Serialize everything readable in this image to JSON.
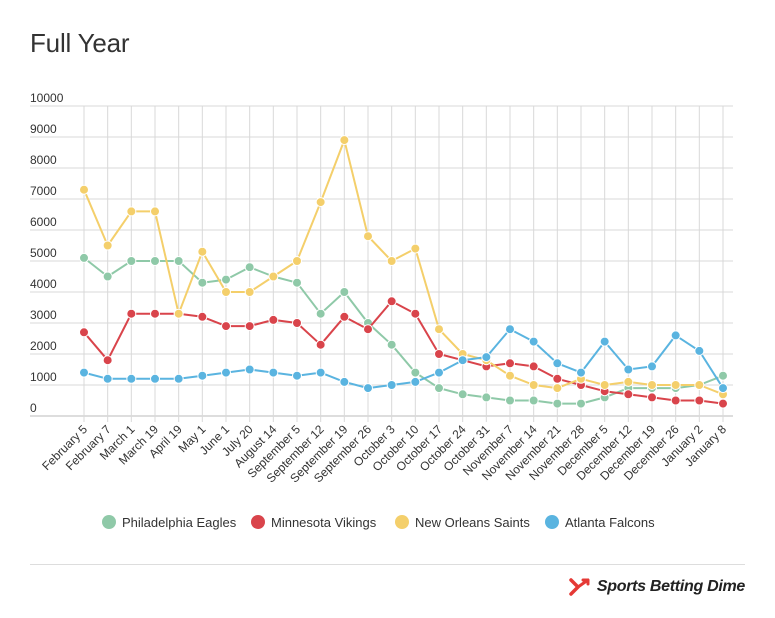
{
  "title": "Full Year",
  "brand": {
    "name": "Sports Betting Dime",
    "logo_icon": "x-arrow-logo-icon",
    "logo_color": "#e53935"
  },
  "chart_data": {
    "type": "line",
    "title": "Full Year",
    "xlabel": "",
    "ylabel": "",
    "ylim": [
      0,
      10000
    ],
    "yticks": [
      0,
      1000,
      2000,
      3000,
      4000,
      5000,
      6000,
      7000,
      8000,
      9000,
      10000
    ],
    "grid": true,
    "legend_position": "bottom",
    "categories": [
      "February 5",
      "February 7",
      "March 1",
      "March 19",
      "April 19",
      "May 1",
      "June 1",
      "July 20",
      "August 14",
      "September 5",
      "September 12",
      "September 19",
      "September 26",
      "October 3",
      "October 10",
      "October 17",
      "October 24",
      "October 31",
      "November 7",
      "November 14",
      "November 21",
      "November 28",
      "December 5",
      "December 12",
      "December 19",
      "December 26",
      "January 2",
      "January 8"
    ],
    "series": [
      {
        "name": "Philadelphia Eagles",
        "color": "#8fc9a8",
        "values": [
          5100,
          4500,
          5000,
          5000,
          5000,
          4300,
          4400,
          4800,
          4500,
          4300,
          3300,
          4000,
          3000,
          2300,
          1400,
          900,
          700,
          600,
          500,
          500,
          400,
          400,
          600,
          900,
          900,
          900,
          1000,
          1300
        ]
      },
      {
        "name": "Minnesota Vikings",
        "color": "#d9444b",
        "values": [
          2700,
          1800,
          3300,
          3300,
          3300,
          3200,
          2900,
          2900,
          3100,
          3000,
          2300,
          3200,
          2800,
          3700,
          3300,
          2000,
          1800,
          1600,
          1700,
          1600,
          1200,
          1000,
          800,
          700,
          600,
          500,
          500,
          400
        ]
      },
      {
        "name": "New Orleans Saints",
        "color": "#f4cf6b",
        "values": [
          7300,
          5500,
          6600,
          6600,
          3300,
          5300,
          4000,
          4000,
          4500,
          5000,
          6900,
          8900,
          5800,
          5000,
          5400,
          2800,
          2000,
          1800,
          1300,
          1000,
          900,
          1200,
          1000,
          1100,
          1000,
          1000,
          1000,
          700
        ]
      },
      {
        "name": "Atlanta Falcons",
        "color": "#5ab4e0",
        "values": [
          1400,
          1200,
          1200,
          1200,
          1200,
          1300,
          1400,
          1500,
          1400,
          1300,
          1400,
          1100,
          900,
          1000,
          1100,
          1400,
          1800,
          1900,
          2800,
          2400,
          1700,
          1400,
          2400,
          1500,
          1600,
          2600,
          2100,
          900
        ]
      }
    ]
  }
}
